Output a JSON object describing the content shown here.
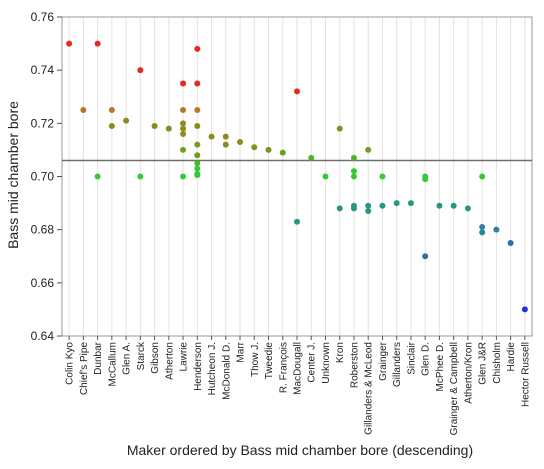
{
  "chart_data": {
    "type": "scatter",
    "xlabel": "Maker ordered by Bass mid chamber bore (descending)",
    "ylabel": "Bass mid chamber bore",
    "ylim": [
      0.64,
      0.76
    ],
    "yticks": [
      "0.64",
      "0.66",
      "0.68",
      "0.70",
      "0.72",
      "0.74",
      "0.76"
    ],
    "reference_line": 0.706,
    "grid": "vertical",
    "categories": [
      "Colin Kyo",
      "Chief's Pipe",
      "Dunbar",
      "McCallum",
      "Glen A.",
      "Starck",
      "Gibson",
      "Atherton",
      "Lawrie",
      "Henderson",
      "Hutcheon J.",
      "McDonald D.",
      "Marr",
      "Thow J.",
      "Tweedie",
      "R. François",
      "MacDougall",
      "Center J.",
      "Unknown",
      "Kron",
      "Roberston",
      "Gillanders & McLeod",
      "Grainger",
      "Gillanders",
      "Sinclair",
      "Glen D.",
      "McPhee D.",
      "Grainger & Campbell",
      "Atherton/Kron",
      "Glen J&R",
      "Chisholm",
      "Hardie",
      "Hector Russell"
    ],
    "points": [
      {
        "maker": "Colin Kyo",
        "y": 0.75,
        "color": "#e8281e"
      },
      {
        "maker": "Chief's Pipe",
        "y": 0.725,
        "color": "#b07a28"
      },
      {
        "maker": "Dunbar",
        "y": 0.75,
        "color": "#e8281e"
      },
      {
        "maker": "Dunbar",
        "y": 0.7,
        "color": "#32cc32"
      },
      {
        "maker": "McCallum",
        "y": 0.725,
        "color": "#b07a28"
      },
      {
        "maker": "McCallum",
        "y": 0.719,
        "color": "#8c8c1e"
      },
      {
        "maker": "Glen A.",
        "y": 0.721,
        "color": "#8c8c1e"
      },
      {
        "maker": "Starck",
        "y": 0.74,
        "color": "#e8281e"
      },
      {
        "maker": "Starck",
        "y": 0.7,
        "color": "#32cc32"
      },
      {
        "maker": "Gibson",
        "y": 0.719,
        "color": "#8c8c1e"
      },
      {
        "maker": "Atherton",
        "y": 0.718,
        "color": "#8c8c1e"
      },
      {
        "maker": "Lawrie",
        "y": 0.735,
        "color": "#e8281e"
      },
      {
        "maker": "Lawrie",
        "y": 0.725,
        "color": "#b07a28"
      },
      {
        "maker": "Lawrie",
        "y": 0.72,
        "color": "#8c8c1e"
      },
      {
        "maker": "Lawrie",
        "y": 0.718,
        "color": "#8c8c1e"
      },
      {
        "maker": "Lawrie",
        "y": 0.716,
        "color": "#8c8c1e"
      },
      {
        "maker": "Lawrie",
        "y": 0.71,
        "color": "#6ea01e"
      },
      {
        "maker": "Lawrie",
        "y": 0.7,
        "color": "#32cc32"
      },
      {
        "maker": "Henderson",
        "y": 0.748,
        "color": "#e8281e"
      },
      {
        "maker": "Henderson",
        "y": 0.735,
        "color": "#e8281e"
      },
      {
        "maker": "Henderson",
        "y": 0.725,
        "color": "#b07a28"
      },
      {
        "maker": "Henderson",
        "y": 0.719,
        "color": "#8c8c1e"
      },
      {
        "maker": "Henderson",
        "y": 0.712,
        "color": "#6ea01e"
      },
      {
        "maker": "Henderson",
        "y": 0.708,
        "color": "#6ea01e"
      },
      {
        "maker": "Henderson",
        "y": 0.705,
        "color": "#50b428"
      },
      {
        "maker": "Henderson",
        "y": 0.703,
        "color": "#32cc32"
      },
      {
        "maker": "Henderson",
        "y": 0.701,
        "color": "#32cc32"
      },
      {
        "maker": "Henderson",
        "y": 0.7005,
        "color": "#32cc32"
      },
      {
        "maker": "Hutcheon J.",
        "y": 0.715,
        "color": "#8c8c1e"
      },
      {
        "maker": "McDonald D.",
        "y": 0.715,
        "color": "#8c8c1e"
      },
      {
        "maker": "McDonald D.",
        "y": 0.712,
        "color": "#8c8c1e"
      },
      {
        "maker": "Marr",
        "y": 0.713,
        "color": "#8c8c1e"
      },
      {
        "maker": "Thow J.",
        "y": 0.711,
        "color": "#7a961e"
      },
      {
        "maker": "Tweedie",
        "y": 0.71,
        "color": "#7a961e"
      },
      {
        "maker": "R. François",
        "y": 0.709,
        "color": "#6ea01e"
      },
      {
        "maker": "MacDougall",
        "y": 0.732,
        "color": "#e8281e"
      },
      {
        "maker": "MacDougall",
        "y": 0.683,
        "color": "#289682"
      },
      {
        "maker": "Center J.",
        "y": 0.707,
        "color": "#50b428"
      },
      {
        "maker": "Unknown",
        "y": 0.7,
        "color": "#32cc32"
      },
      {
        "maker": "Kron",
        "y": 0.718,
        "color": "#8c8c1e"
      },
      {
        "maker": "Kron",
        "y": 0.688,
        "color": "#289682"
      },
      {
        "maker": "Roberston",
        "y": 0.707,
        "color": "#50b428"
      },
      {
        "maker": "Roberston",
        "y": 0.702,
        "color": "#32cc32"
      },
      {
        "maker": "Roberston",
        "y": 0.7,
        "color": "#32cc32"
      },
      {
        "maker": "Roberston",
        "y": 0.689,
        "color": "#289682"
      },
      {
        "maker": "Roberston",
        "y": 0.688,
        "color": "#289682"
      },
      {
        "maker": "Gillanders & McLeod",
        "y": 0.71,
        "color": "#6ea01e"
      },
      {
        "maker": "Gillanders & McLeod",
        "y": 0.689,
        "color": "#289682"
      },
      {
        "maker": "Gillanders & McLeod",
        "y": 0.687,
        "color": "#289682"
      },
      {
        "maker": "Grainger",
        "y": 0.7,
        "color": "#32cc32"
      },
      {
        "maker": "Grainger",
        "y": 0.689,
        "color": "#289682"
      },
      {
        "maker": "Gillanders",
        "y": 0.69,
        "color": "#289682"
      },
      {
        "maker": "Sinclair",
        "y": 0.69,
        "color": "#289682"
      },
      {
        "maker": "Glen D.",
        "y": 0.7,
        "color": "#32cc32"
      },
      {
        "maker": "Glen D.",
        "y": 0.699,
        "color": "#32cc32"
      },
      {
        "maker": "Glen D.",
        "y": 0.67,
        "color": "#2d6ea0"
      },
      {
        "maker": "McPhee D.",
        "y": 0.689,
        "color": "#289682"
      },
      {
        "maker": "Grainger & Campbell",
        "y": 0.689,
        "color": "#289682"
      },
      {
        "maker": "Atherton/Kron",
        "y": 0.688,
        "color": "#289682"
      },
      {
        "maker": "Glen J&R",
        "y": 0.7,
        "color": "#32cc32"
      },
      {
        "maker": "Glen J&R",
        "y": 0.681,
        "color": "#2d82a0"
      },
      {
        "maker": "Glen J&R",
        "y": 0.679,
        "color": "#2d82a0"
      },
      {
        "maker": "Chisholm",
        "y": 0.68,
        "color": "#2d82a0"
      },
      {
        "maker": "Hardie",
        "y": 0.675,
        "color": "#2d6ea0"
      },
      {
        "maker": "Hector Russell",
        "y": 0.65,
        "color": "#1e32e6"
      }
    ]
  }
}
